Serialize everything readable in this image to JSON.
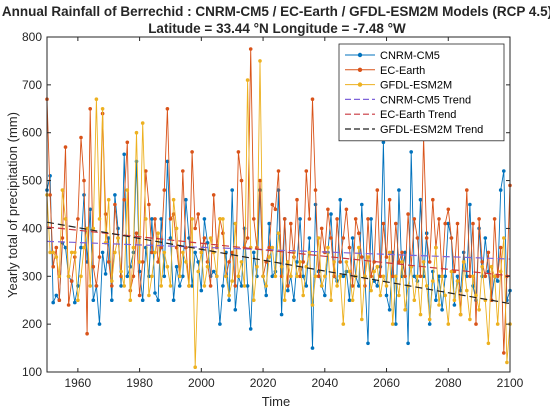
{
  "chart_data": {
    "type": "line",
    "title": "Annual Rainfall of Berrechid : CNRM-CM5 / EC-Earth / GFDL-ESM2M Models (RCP 4.5)",
    "subtitle": "Latitude = 33.44 °N Longitude = -7.48 °W",
    "xlabel": "Time",
    "ylabel": "Yearly total of precipitation (mm)",
    "xlim": [
      1950,
      2100
    ],
    "ylim": [
      100,
      800
    ],
    "xticks": [
      1960,
      1980,
      2000,
      2020,
      2040,
      2060,
      2080,
      2100
    ],
    "yticks": [
      100,
      200,
      300,
      400,
      500,
      600,
      700,
      800
    ],
    "x_start": 1950,
    "x_step": 1,
    "series": [
      {
        "name": "CNRM-CM5",
        "color": "#0072BD",
        "values": [
          480,
          510,
          245,
          260,
          250,
          370,
          360,
          300,
          290,
          245,
          280,
          360,
          470,
          330,
          440,
          250,
          280,
          200,
          350,
          305,
          380,
          250,
          470,
          400,
          280,
          555,
          300,
          320,
          350,
          540,
          310,
          250,
          360,
          300,
          420,
          265,
          250,
          420,
          300,
          540,
          380,
          250,
          320,
          280,
          300,
          460,
          380,
          280,
          350,
          330,
          270,
          420,
          370,
          300,
          310,
          300,
          200,
          280,
          350,
          250,
          480,
          230,
          300,
          280,
          400,
          280,
          190,
          350,
          300,
          480,
          300,
          260,
          410,
          300,
          310,
          480,
          220,
          420,
          270,
          300,
          250,
          330,
          420,
          300,
          280,
          380,
          150,
          450,
          310,
          280,
          260,
          350,
          430,
          300,
          290,
          460,
          300,
          310,
          250,
          380,
          300,
          280,
          450,
          300,
          160,
          420,
          290,
          280,
          320,
          580,
          260,
          230,
          350,
          200,
          480,
          300,
          350,
          160,
          560,
          300,
          290,
          460,
          300,
          390,
          200,
          310,
          250,
          300,
          230,
          300,
          410,
          380,
          240,
          300,
          270,
          350,
          300,
          450,
          280,
          250,
          400,
          300,
          380,
          310,
          250,
          300,
          290,
          480,
          520,
          250,
          270
        ]
      },
      {
        "name": "EC-Earth",
        "color": "#D95319",
        "values": [
          670,
          470,
          320,
          360,
          250,
          380,
          570,
          240,
          290,
          340,
          420,
          590,
          500,
          180,
          650,
          320,
          280,
          340,
          640,
          430,
          330,
          280,
          450,
          380,
          300,
          460,
          580,
          270,
          300,
          390,
          260,
          330,
          520,
          450,
          350,
          420,
          330,
          360,
          480,
          650,
          420,
          430,
          360,
          300,
          520,
          360,
          280,
          560,
          400,
          430,
          350,
          380,
          330,
          280,
          470,
          360,
          420,
          390,
          300,
          330,
          350,
          280,
          560,
          500,
          360,
          380,
          775,
          420,
          360,
          500,
          300,
          330,
          360,
          450,
          440,
          520,
          300,
          420,
          280,
          410,
          340,
          460,
          300,
          330,
          520,
          420,
          670,
          480,
          300,
          400,
          350,
          440,
          380,
          300,
          420,
          330,
          380,
          440,
          360,
          280,
          420,
          390,
          340,
          280,
          420,
          300,
          330,
          480,
          300,
          410,
          340,
          460,
          300,
          410,
          330,
          350,
          300,
          430,
          320,
          420,
          380,
          300,
          590,
          380,
          330,
          460,
          360,
          420,
          300,
          410,
          440,
          380,
          310,
          410,
          220,
          330,
          480,
          300,
          410,
          200,
          420,
          330,
          300,
          350,
          250,
          420,
          300,
          360,
          140,
          300,
          490
        ]
      },
      {
        "name": "GFDL-ESM2M",
        "color": "#EDB120",
        "values": [
          470,
          350,
          350,
          340,
          300,
          480,
          420,
          300,
          350,
          350,
          250,
          300,
          360,
          400,
          280,
          400,
          670,
          420,
          650,
          370,
          460,
          290,
          350,
          380,
          310,
          280,
          480,
          250,
          360,
          600,
          330,
          620,
          420,
          260,
          300,
          350,
          390,
          280,
          350,
          320,
          280,
          460,
          400,
          300,
          350,
          330,
          280,
          420,
          110,
          310,
          350,
          280,
          320,
          380,
          350,
          300,
          420,
          420,
          300,
          260,
          290,
          410,
          300,
          330,
          280,
          710,
          360,
          250,
          320,
          750,
          300,
          280,
          340,
          360,
          300,
          390,
          320,
          250,
          330,
          300,
          350,
          300,
          330,
          260,
          320,
          350,
          240,
          300,
          380,
          280,
          300,
          360,
          250,
          330,
          280,
          300,
          200,
          330,
          310,
          250,
          300,
          360,
          210,
          300,
          340,
          270,
          310,
          320,
          260,
          300,
          280,
          350,
          200,
          300,
          260,
          330,
          230,
          280,
          320,
          250,
          300,
          220,
          330,
          280,
          210,
          290,
          360,
          240,
          300,
          260,
          200,
          310,
          250,
          290,
          220,
          330,
          270,
          210,
          300,
          260,
          230,
          320,
          250,
          160,
          320,
          300,
          200,
          310,
          380,
          120,
          200
        ]
      }
    ],
    "trends": [
      {
        "name": "CNRM-CM5 Trend",
        "color": "#7E63D9",
        "y0": 373,
        "y1": 336
      },
      {
        "name": "EC-Earth Trend",
        "color": "#C8373F",
        "y0": 403,
        "y1": 301
      },
      {
        "name": "GFDL-ESM2M Trend",
        "color": "#222222",
        "y0": 413,
        "y1": 243
      }
    ],
    "legend_position": "top-right",
    "grid": false
  }
}
